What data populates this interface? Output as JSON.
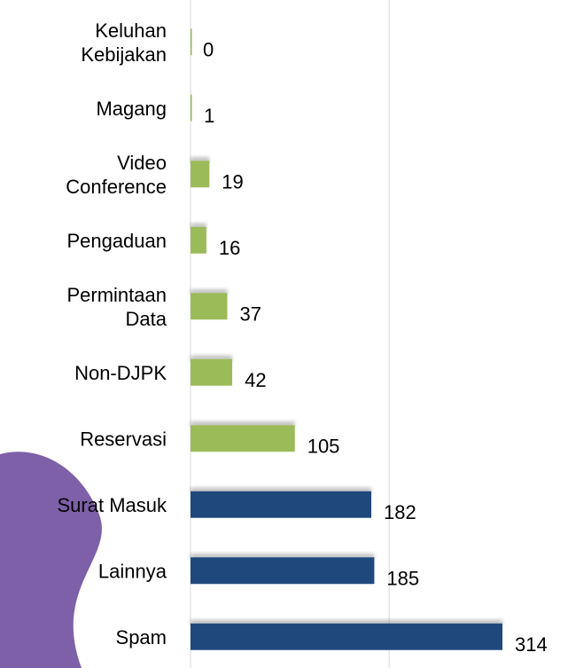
{
  "chart_data": {
    "type": "bar",
    "orientation": "horizontal",
    "categories": [
      "Keluhan\nKebijakan",
      "Magang",
      "Video\nConference",
      "Pengaduan",
      "Permintaan\nData",
      "Non-DJPK",
      "Reservasi",
      "Surat Masuk",
      "Lainnya",
      "Spam"
    ],
    "values": [
      0,
      1,
      19,
      16,
      37,
      42,
      105,
      182,
      185,
      314
    ],
    "colors": [
      "#9bbb59",
      "#9bbb59",
      "#9bbb59",
      "#9bbb59",
      "#9bbb59",
      "#9bbb59",
      "#9bbb59",
      "#1f497d",
      "#1f497d",
      "#1f497d"
    ],
    "xlim": [
      0,
      380
    ],
    "xticks": [
      0,
      200
    ],
    "grid": true
  }
}
